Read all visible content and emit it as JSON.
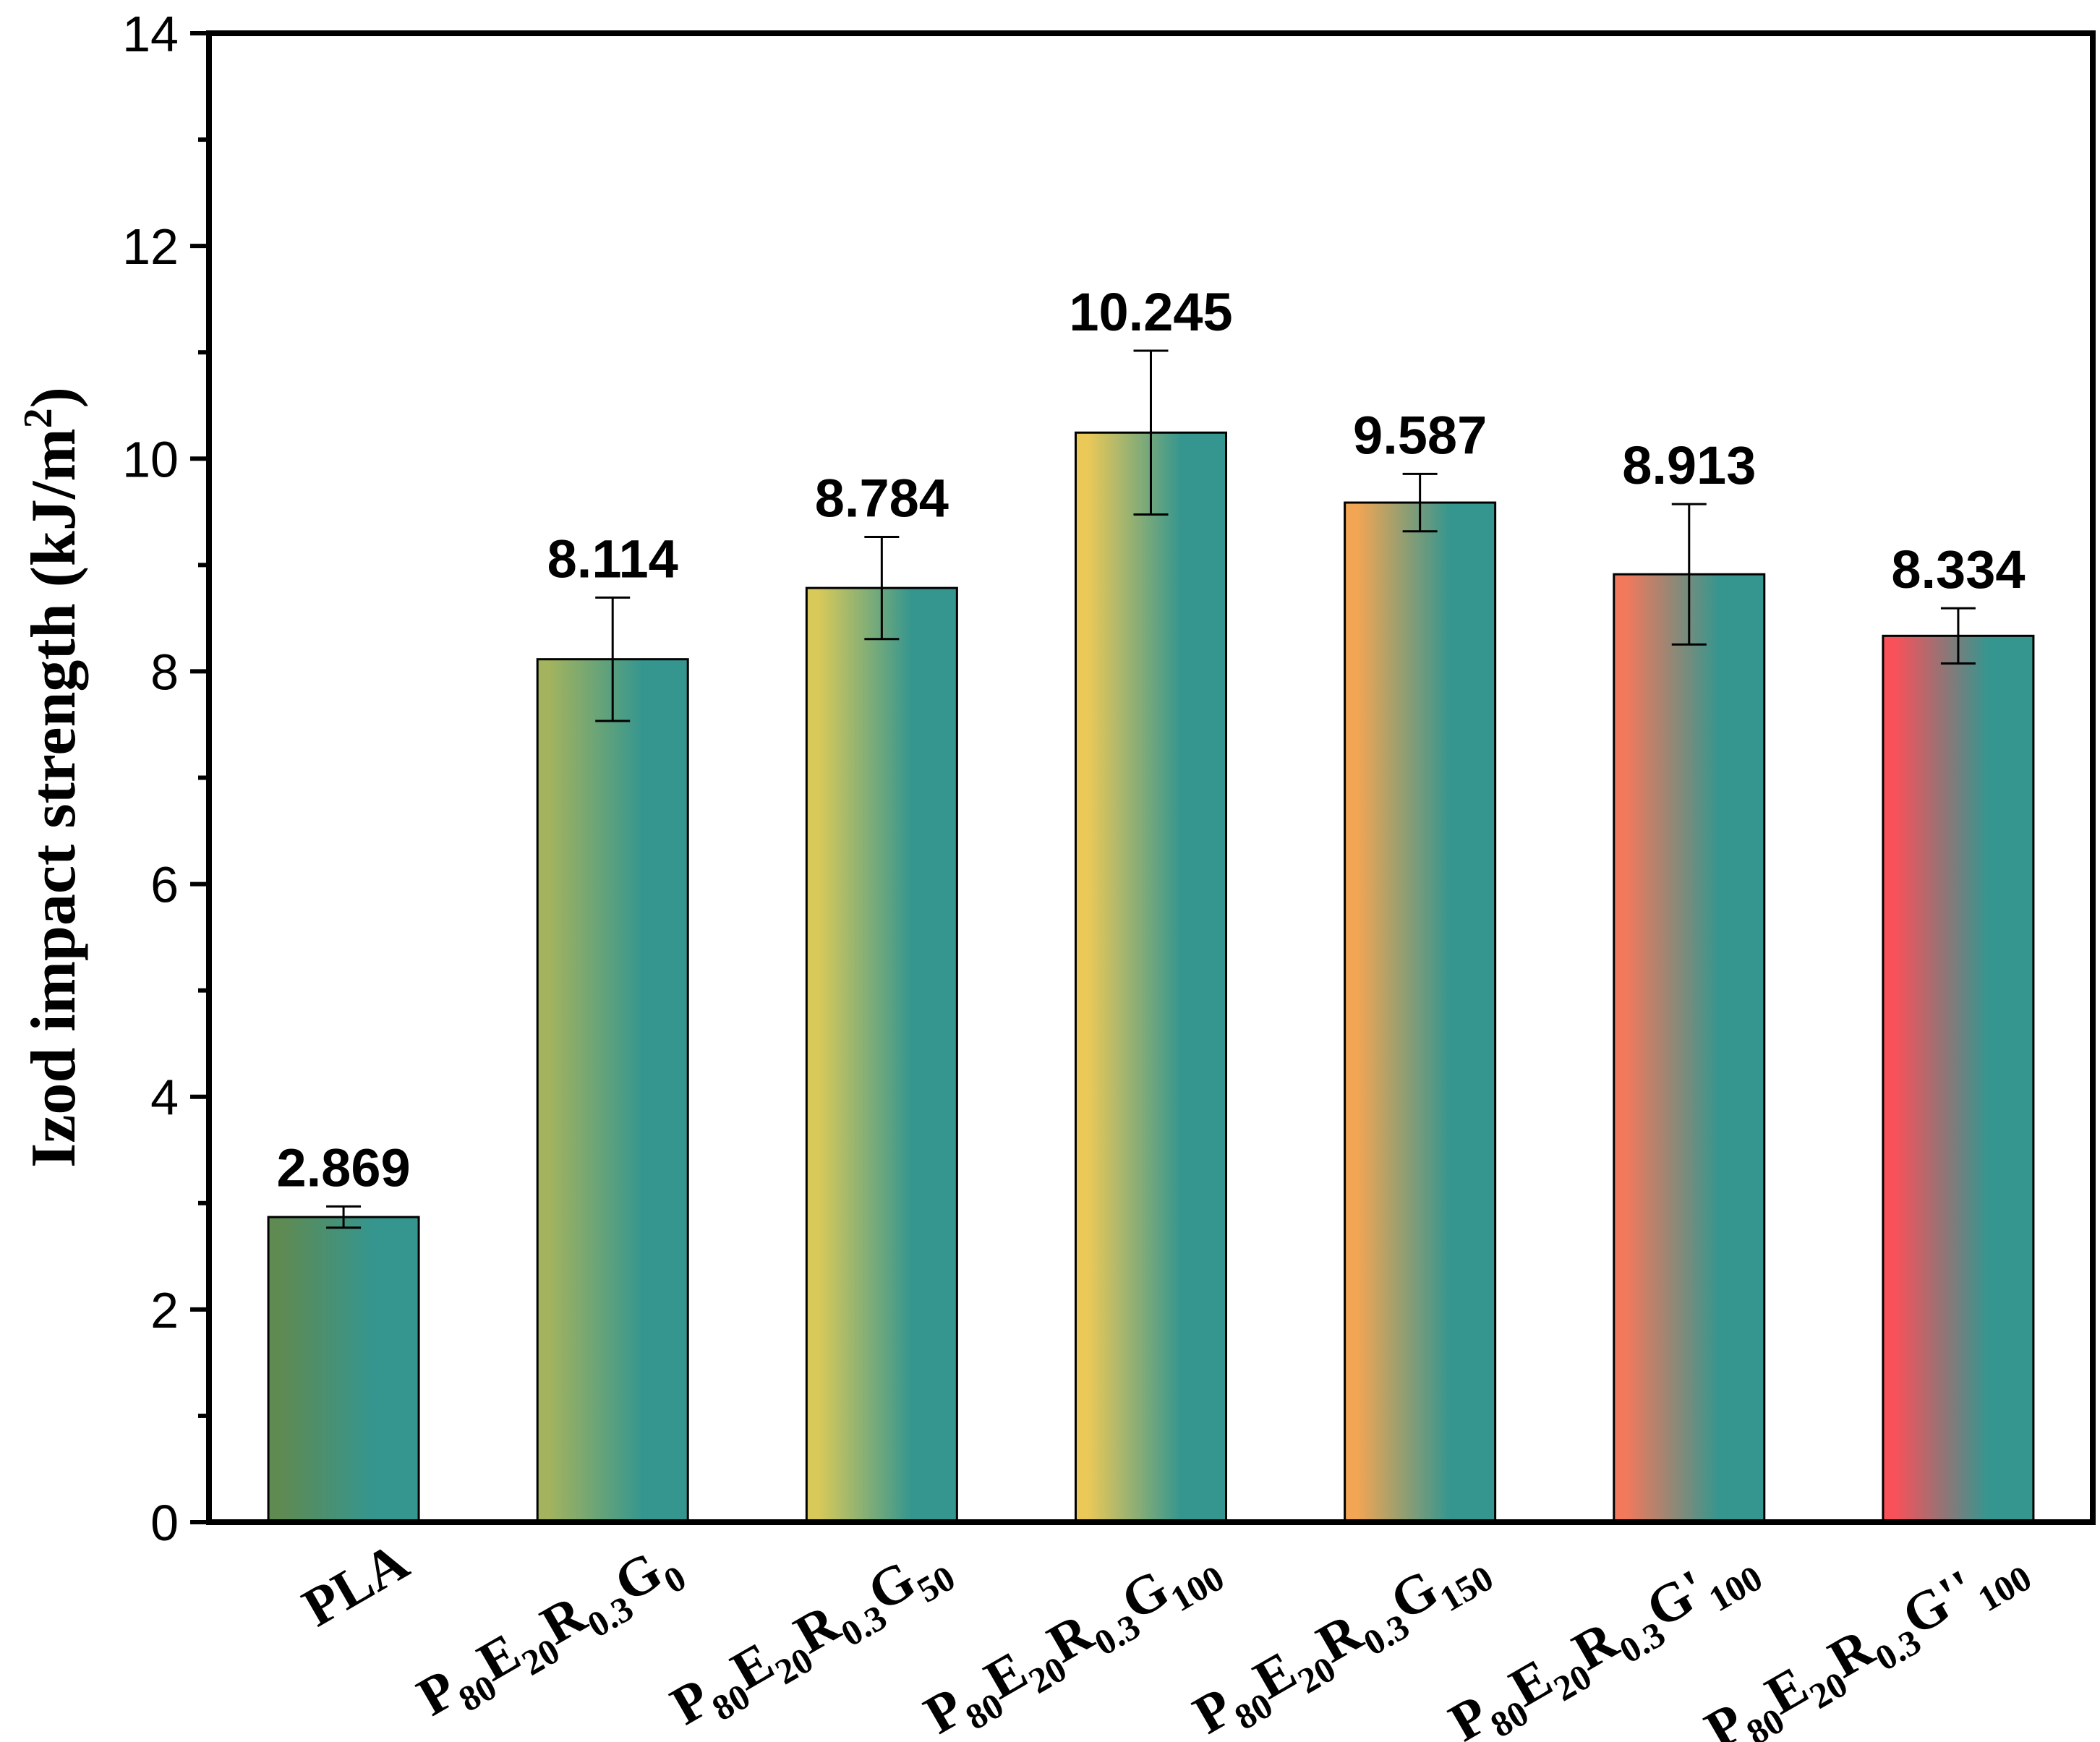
{
  "chart_data": {
    "type": "bar",
    "title": "",
    "xlabel": "",
    "ylabel": "Izod impact strength (kJ/m2)",
    "ylabel_parts": {
      "main": "Izod impact strength (kJ/m",
      "sup": "2",
      "close": ")"
    },
    "ylim": [
      0,
      14
    ],
    "yticks": [
      "0",
      "2",
      "4",
      "6",
      "8",
      "10",
      "12",
      "14"
    ],
    "grid": false,
    "categories": [
      {
        "label": "PLA",
        "parts": [
          {
            "t": "PLA",
            "sub": false
          }
        ]
      },
      {
        "label": "P80E20R0.3G0",
        "parts": [
          {
            "t": "P",
            "sub": false
          },
          {
            "t": "80",
            "sub": true
          },
          {
            "t": "E",
            "sub": false
          },
          {
            "t": "20",
            "sub": true
          },
          {
            "t": "R",
            "sub": false
          },
          {
            "t": "0.3",
            "sub": true
          },
          {
            "t": "G",
            "sub": false
          },
          {
            "t": "0",
            "sub": true
          }
        ]
      },
      {
        "label": "P80E20R0.3G50",
        "parts": [
          {
            "t": "P",
            "sub": false
          },
          {
            "t": "80",
            "sub": true
          },
          {
            "t": "E",
            "sub": false
          },
          {
            "t": "20",
            "sub": true
          },
          {
            "t": "R",
            "sub": false
          },
          {
            "t": "0.3",
            "sub": true
          },
          {
            "t": "G",
            "sub": false
          },
          {
            "t": "50",
            "sub": true
          }
        ]
      },
      {
        "label": "P80E20R0.3G100",
        "parts": [
          {
            "t": "P",
            "sub": false
          },
          {
            "t": "80",
            "sub": true
          },
          {
            "t": "E",
            "sub": false
          },
          {
            "t": "20",
            "sub": true
          },
          {
            "t": "R",
            "sub": false
          },
          {
            "t": "0.3",
            "sub": true
          },
          {
            "t": "G",
            "sub": false
          },
          {
            "t": "100",
            "sub": true
          }
        ]
      },
      {
        "label": "P80E20R0.3G150",
        "parts": [
          {
            "t": "P",
            "sub": false
          },
          {
            "t": "80",
            "sub": true
          },
          {
            "t": "E",
            "sub": false
          },
          {
            "t": "20",
            "sub": true
          },
          {
            "t": "R",
            "sub": false
          },
          {
            "t": "0.3",
            "sub": true
          },
          {
            "t": "G",
            "sub": false
          },
          {
            "t": "150",
            "sub": true
          }
        ]
      },
      {
        "label": "P80E20R0.3G'100",
        "parts": [
          {
            "t": "P",
            "sub": false
          },
          {
            "t": "80",
            "sub": true
          },
          {
            "t": "E",
            "sub": false
          },
          {
            "t": "20",
            "sub": true
          },
          {
            "t": "R",
            "sub": false
          },
          {
            "t": "0.3",
            "sub": true
          },
          {
            "t": "G'",
            "sub": false
          },
          {
            "t": "100",
            "sub": true
          }
        ]
      },
      {
        "label": "P80E20R0.3G''100",
        "parts": [
          {
            "t": "P",
            "sub": false
          },
          {
            "t": "80",
            "sub": true
          },
          {
            "t": "E",
            "sub": false
          },
          {
            "t": "20",
            "sub": true
          },
          {
            "t": "R",
            "sub": false
          },
          {
            "t": "0.3",
            "sub": true
          },
          {
            "t": "G''",
            "sub": false
          },
          {
            "t": "100",
            "sub": true
          }
        ]
      }
    ],
    "values": [
      2.869,
      8.114,
      8.784,
      10.245,
      9.587,
      8.913,
      8.334
    ],
    "value_labels": [
      "2.869",
      "8.114",
      "8.784",
      "10.245",
      "9.587",
      "8.913",
      "8.334"
    ],
    "errors": [
      0.1,
      0.58,
      0.48,
      0.77,
      0.27,
      0.66,
      0.26
    ],
    "bar_colors": [
      "#5f8a52",
      "#a3b35e",
      "#d8c95a",
      "#ebc958",
      "#f2a654",
      "#f2795c",
      "#f8515a"
    ],
    "gradient_end_color": "#35968f"
  }
}
